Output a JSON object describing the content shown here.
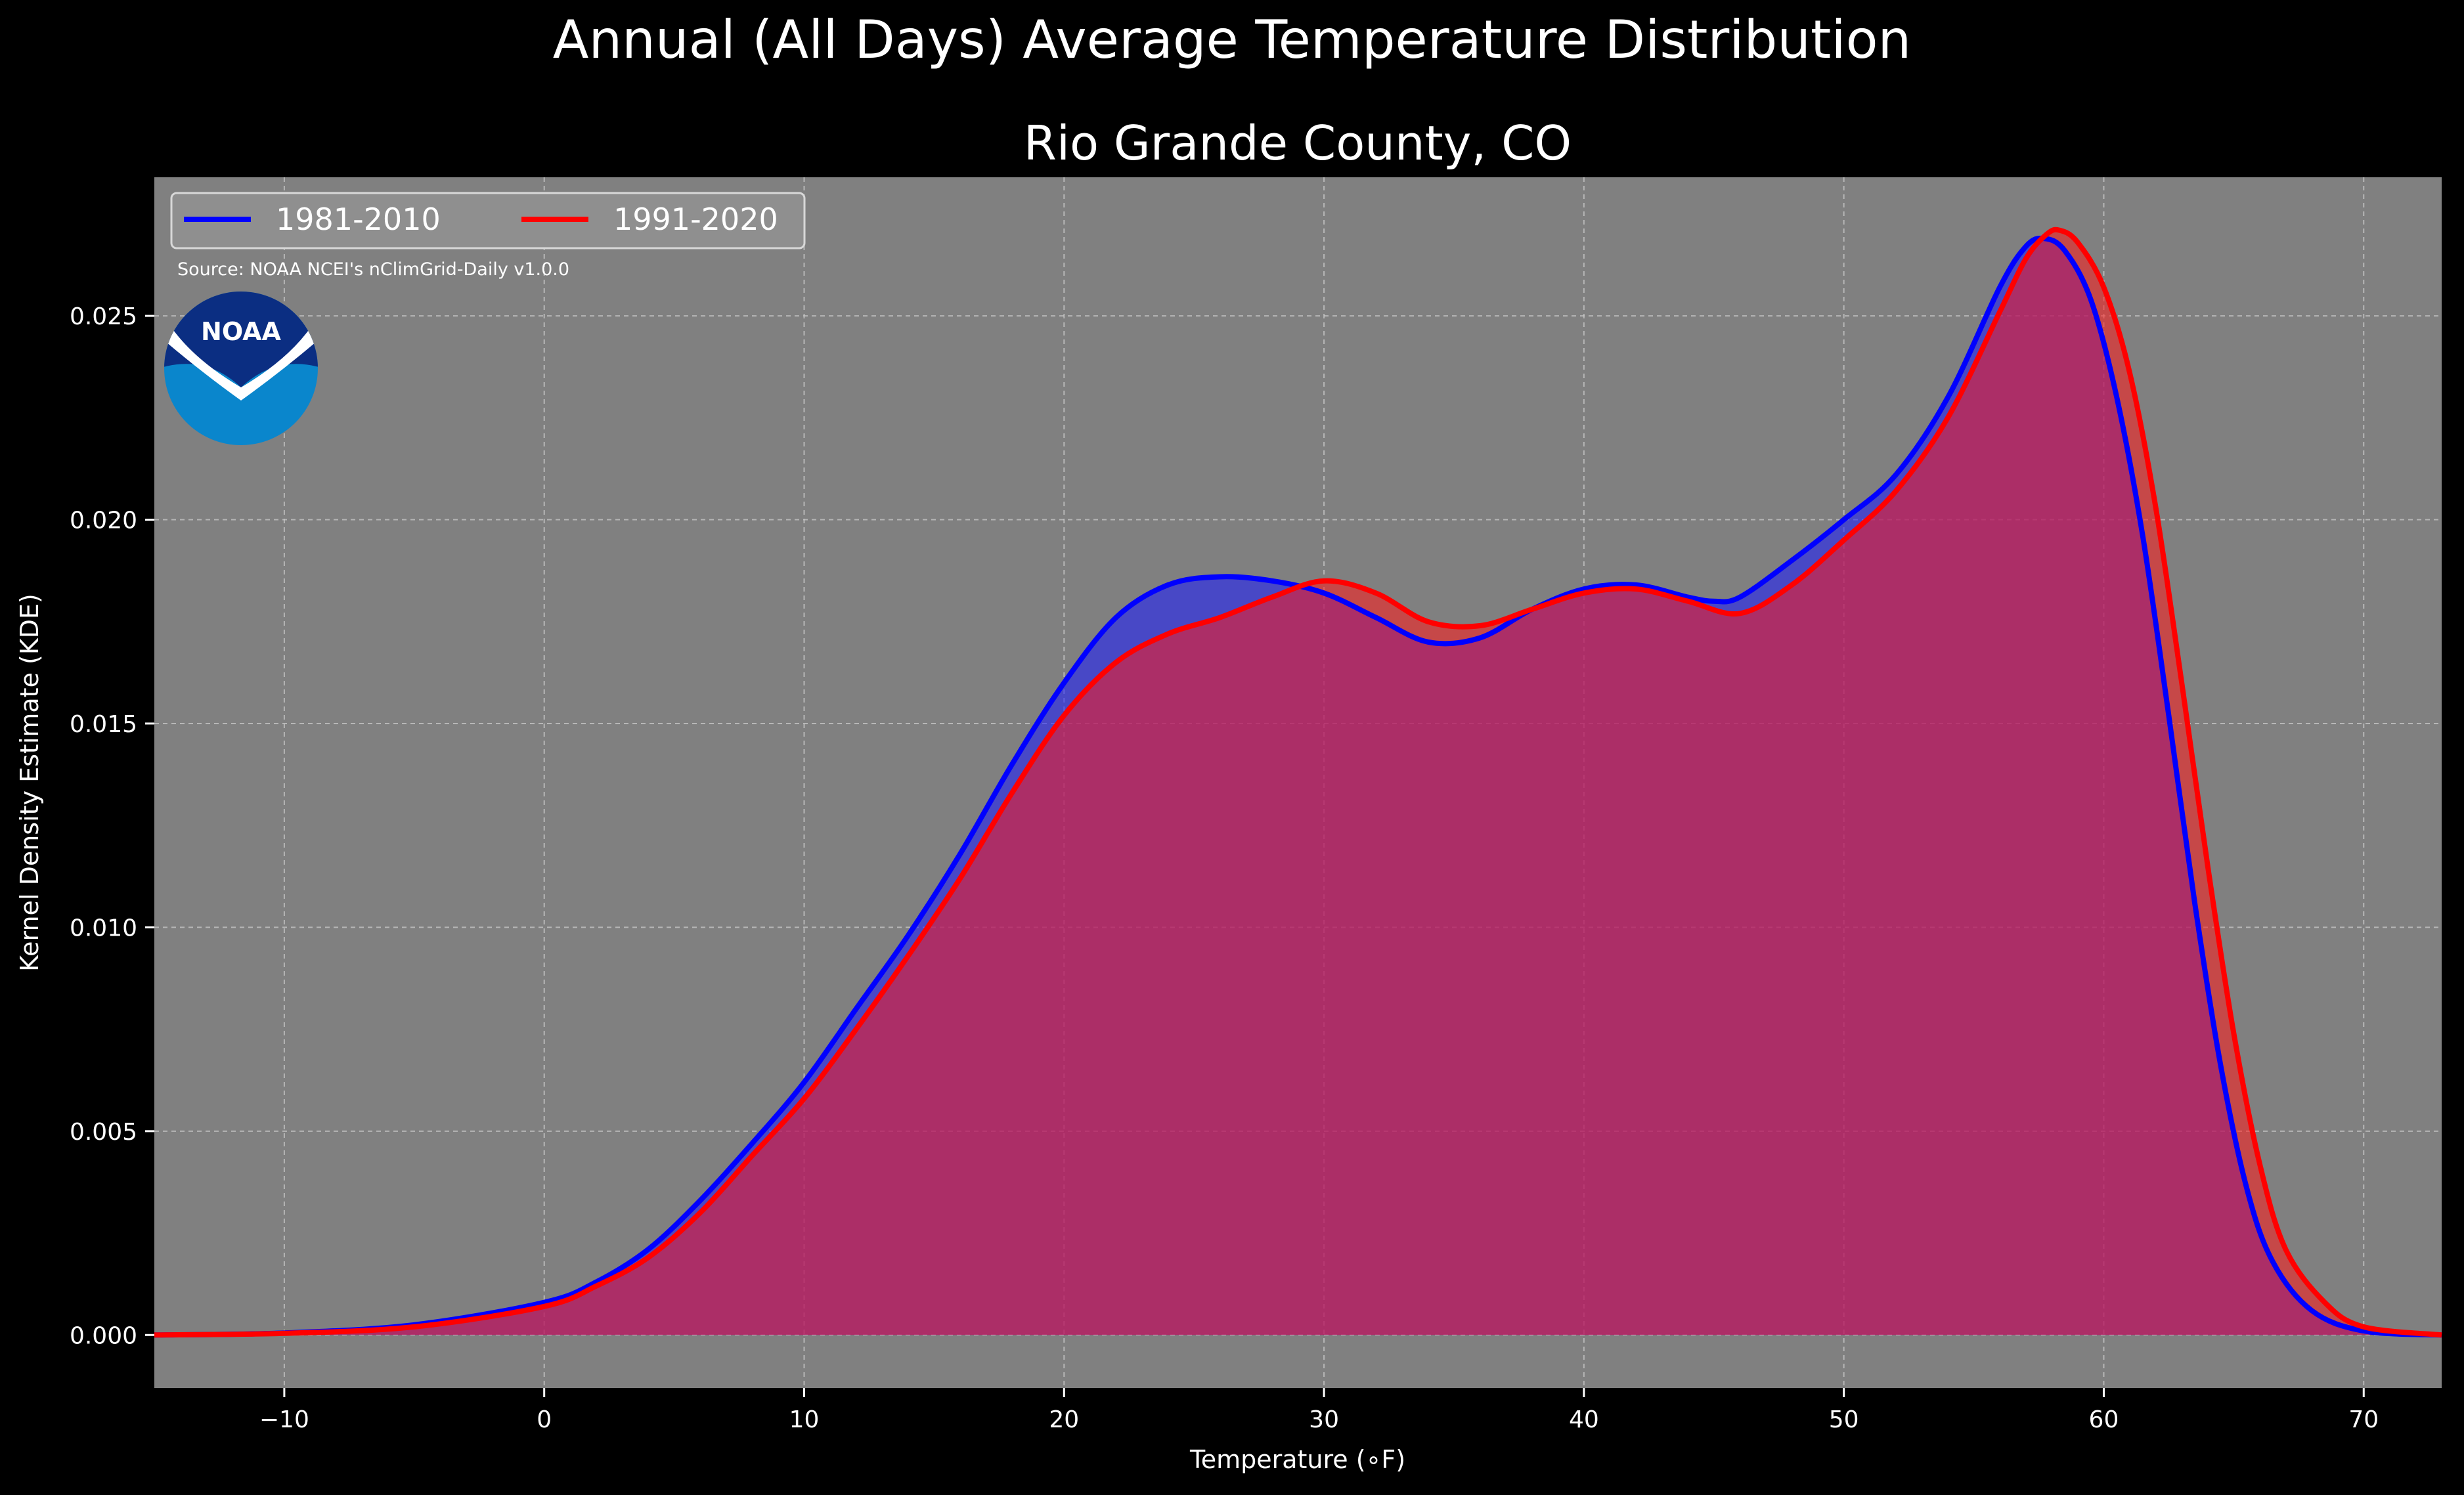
{
  "chart_data": {
    "type": "area",
    "title": "Annual (All Days) Average Temperature Distribution",
    "subtitle": "Rio Grande County, CO",
    "xlabel": "Temperature (∘F)",
    "ylabel": "Kernel Density Estimate (KDE)",
    "xlim": [
      -15,
      73
    ],
    "ylim": [
      -0.0013,
      0.0284
    ],
    "xticks": [
      -10,
      0,
      10,
      20,
      30,
      40,
      50,
      60,
      70
    ],
    "xtick_labels": [
      "−10",
      "0",
      "10",
      "20",
      "30",
      "40",
      "50",
      "60",
      "70"
    ],
    "yticks": [
      0.0,
      0.005,
      0.01,
      0.015,
      0.02,
      0.025
    ],
    "ytick_labels": [
      "0.000",
      "0.005",
      "0.010",
      "0.015",
      "0.020",
      "0.025"
    ],
    "grid": true,
    "legend_position": "top-left",
    "source_note": "Source: NOAA NCEI's nClimGrid-Daily v1.0.0",
    "logo_text": "NOAA",
    "colors": {
      "background": "#000000",
      "plot_background": "#808080",
      "text": "#ffffff"
    },
    "series": [
      {
        "name": "1981-2010",
        "color": "#0000ff",
        "fill": "#1a1aff",
        "x": [
          -15,
          -10,
          -5,
          0,
          2,
          4,
          6,
          8,
          10,
          12,
          14,
          16,
          18,
          20,
          22,
          24,
          26,
          28,
          30,
          32,
          34,
          36,
          38,
          40,
          42,
          44,
          45,
          46,
          48,
          50,
          52,
          54,
          56,
          57,
          57.7,
          58.5,
          59.5,
          60.5,
          61.5,
          62.5,
          63.5,
          64.5,
          65.5,
          66.5,
          68,
          70,
          73
        ],
        "y": [
          0.0,
          5e-05,
          0.00025,
          0.0008,
          0.0013,
          0.0021,
          0.0033,
          0.0047,
          0.0062,
          0.008,
          0.0098,
          0.0118,
          0.014,
          0.016,
          0.0176,
          0.0184,
          0.0186,
          0.0185,
          0.0182,
          0.0176,
          0.017,
          0.0171,
          0.0178,
          0.0183,
          0.0184,
          0.0181,
          0.018,
          0.0181,
          0.019,
          0.02,
          0.0211,
          0.023,
          0.0257,
          0.0267,
          0.0269,
          0.0266,
          0.0254,
          0.023,
          0.0196,
          0.0152,
          0.0106,
          0.0066,
          0.0036,
          0.0018,
          0.0006,
          0.0001,
          0.0
        ]
      },
      {
        "name": "1991-2020",
        "color": "#ff0000",
        "fill": "#ff1a1a",
        "x": [
          -15,
          -10,
          -5,
          0,
          2,
          4,
          6,
          8,
          10,
          12,
          14,
          16,
          18,
          20,
          22,
          24,
          26,
          28,
          30,
          32,
          34,
          36,
          38,
          40,
          42,
          44,
          46,
          48,
          50,
          52,
          54,
          56,
          57,
          57.8,
          58.3,
          59,
          60,
          61,
          62,
          63,
          64,
          65,
          66,
          67,
          68.5,
          70,
          73
        ],
        "y": [
          0.0,
          4e-05,
          0.0002,
          0.0007,
          0.0012,
          0.0019,
          0.003,
          0.0044,
          0.0058,
          0.0075,
          0.0093,
          0.0112,
          0.0133,
          0.0152,
          0.0165,
          0.0172,
          0.0176,
          0.0181,
          0.0185,
          0.0182,
          0.0175,
          0.0174,
          0.0178,
          0.0182,
          0.0183,
          0.018,
          0.0177,
          0.0184,
          0.0195,
          0.0207,
          0.0225,
          0.0251,
          0.0264,
          0.027,
          0.0271,
          0.0268,
          0.0257,
          0.0236,
          0.0203,
          0.016,
          0.0115,
          0.0074,
          0.0042,
          0.0021,
          0.0008,
          0.0002,
          0.0
        ]
      }
    ]
  }
}
